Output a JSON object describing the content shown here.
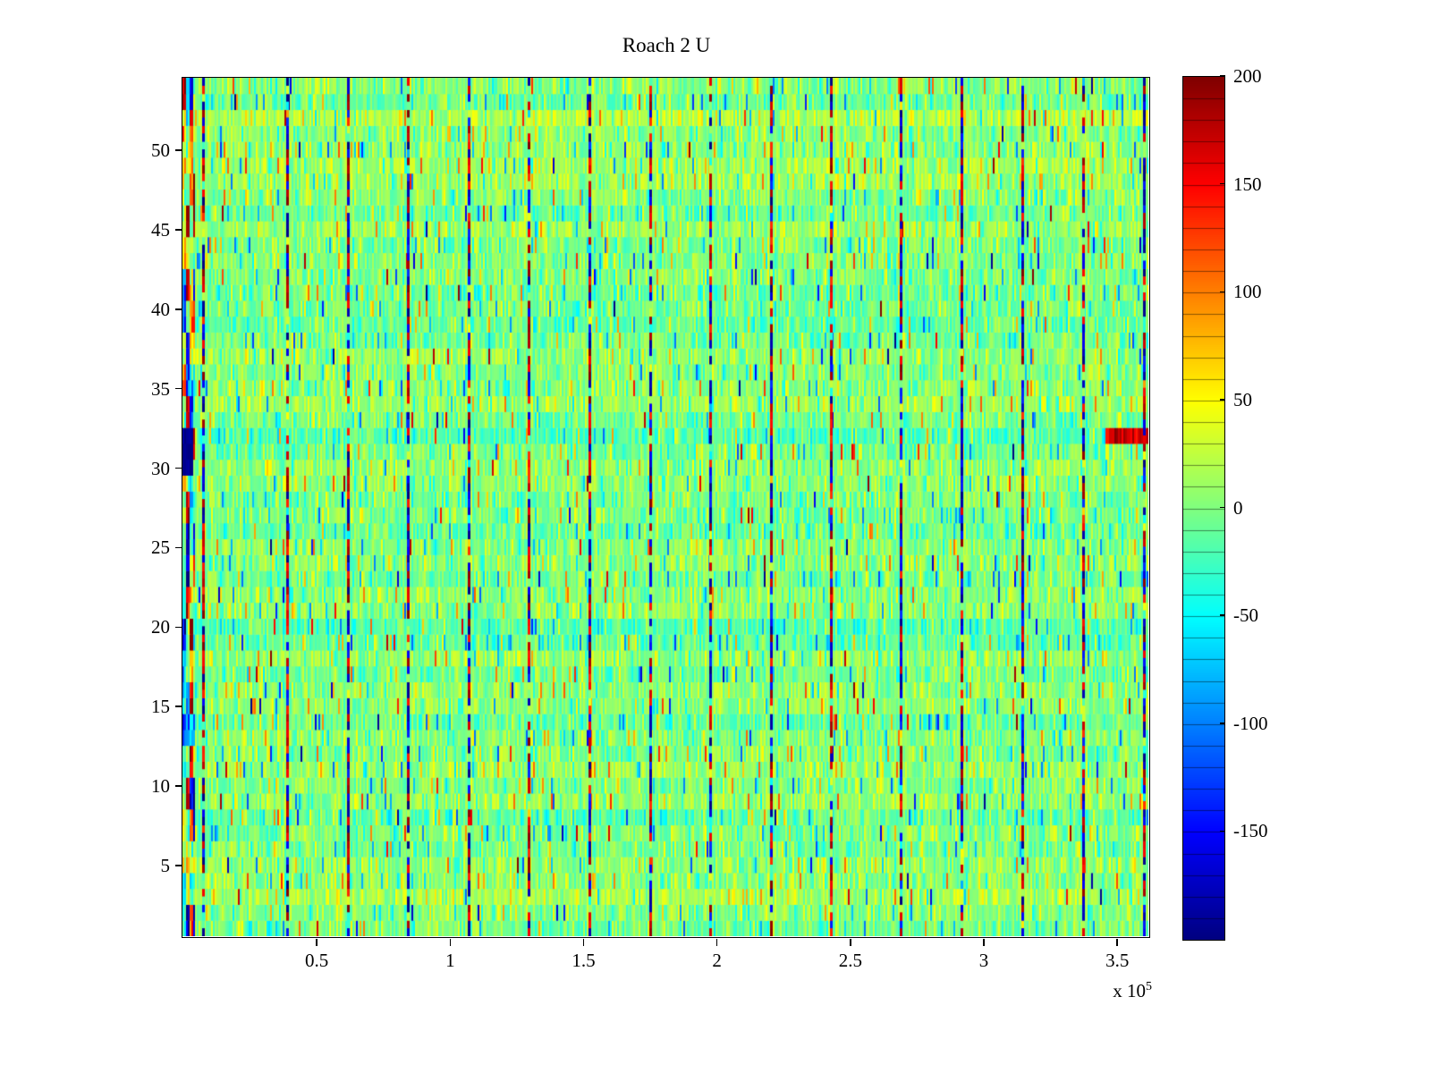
{
  "chart_data": {
    "type": "heatmap",
    "title": "Roach 2 U",
    "x_axis": {
      "min": 0,
      "max": 362000,
      "tick_values": [
        50000,
        100000,
        150000,
        200000,
        250000,
        300000,
        350000
      ],
      "tick_labels": [
        "0.5",
        "1",
        "1.5",
        "2",
        "2.5",
        "3",
        "3.5"
      ],
      "exponent_prefix": "x 10",
      "exponent": "5"
    },
    "y_axis": {
      "min": 0.5,
      "max": 54.5,
      "tick_values": [
        5,
        10,
        15,
        20,
        25,
        30,
        35,
        40,
        45,
        50
      ],
      "tick_labels": [
        "5",
        "10",
        "15",
        "20",
        "25",
        "30",
        "35",
        "40",
        "45",
        "50"
      ]
    },
    "colorbar": {
      "min": -200,
      "max": 200,
      "tick_values": [
        200,
        150,
        100,
        50,
        0,
        -50,
        -100,
        -150
      ],
      "tick_labels": [
        "200",
        "150",
        "100",
        "50",
        "0",
        "-50",
        "-100",
        "-150"
      ],
      "colormap": "jet",
      "segment_interval": 10
    },
    "grid": {
      "rows": 54,
      "cols": 540
    },
    "noise": {
      "seed": 1234,
      "row_bias_std": 9,
      "cell_std": 20,
      "speckle_prob": 0.06,
      "speckle_min": 40,
      "speckle_max": 110,
      "hot_prob": 0.006
    },
    "stripe_columns": {
      "fractions": [
        0.0213,
        0.1083,
        0.1713,
        0.2333,
        0.2963,
        0.3583,
        0.4213,
        0.4842,
        0.5463,
        0.6093,
        0.6713,
        0.7435,
        0.8065,
        0.8694,
        0.9324,
        0.9954
      ],
      "magnitude_min": 130,
      "magnitude_max": 200,
      "gap_prob": 0.18
    },
    "features": {
      "left_band_cols": 7,
      "left_band_extreme_prob": 0.3,
      "blue_blob_row_start": 29,
      "blue_blob_row_end": 31,
      "blue_blob_value": -185,
      "anomalous_row": 31,
      "anomalous_row_bias": -35,
      "right_streak_value": 150,
      "right_streak_cols": 24
    }
  }
}
